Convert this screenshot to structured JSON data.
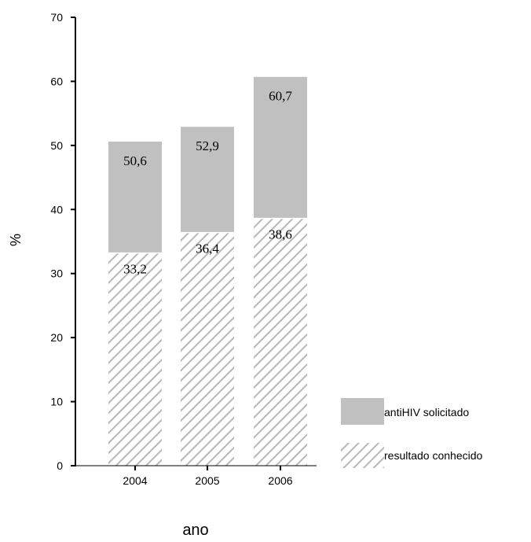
{
  "chart_data": {
    "type": "bar",
    "xlabel": "ano",
    "ylabel": "%",
    "ylim": [
      0,
      70
    ],
    "yticks": [
      0,
      10,
      20,
      30,
      40,
      50,
      60,
      70
    ],
    "grid": false,
    "legend_position": "bottom-right",
    "categories": [
      "2004",
      "2005",
      "2006"
    ],
    "series": [
      {
        "name": "antiHIV solicitado",
        "values": [
          50.6,
          52.9,
          60.7
        ],
        "labels": [
          "50,6",
          "52,9",
          "60,7"
        ],
        "color": "#c0c0c0",
        "fill": "solid"
      },
      {
        "name": "resultado conhecido",
        "values": [
          33.2,
          36.4,
          38.6
        ],
        "labels": [
          "33,2",
          "36,4",
          "38,6"
        ],
        "color": "#c0c0c0",
        "fill": "diagonal-hatch"
      }
    ]
  }
}
